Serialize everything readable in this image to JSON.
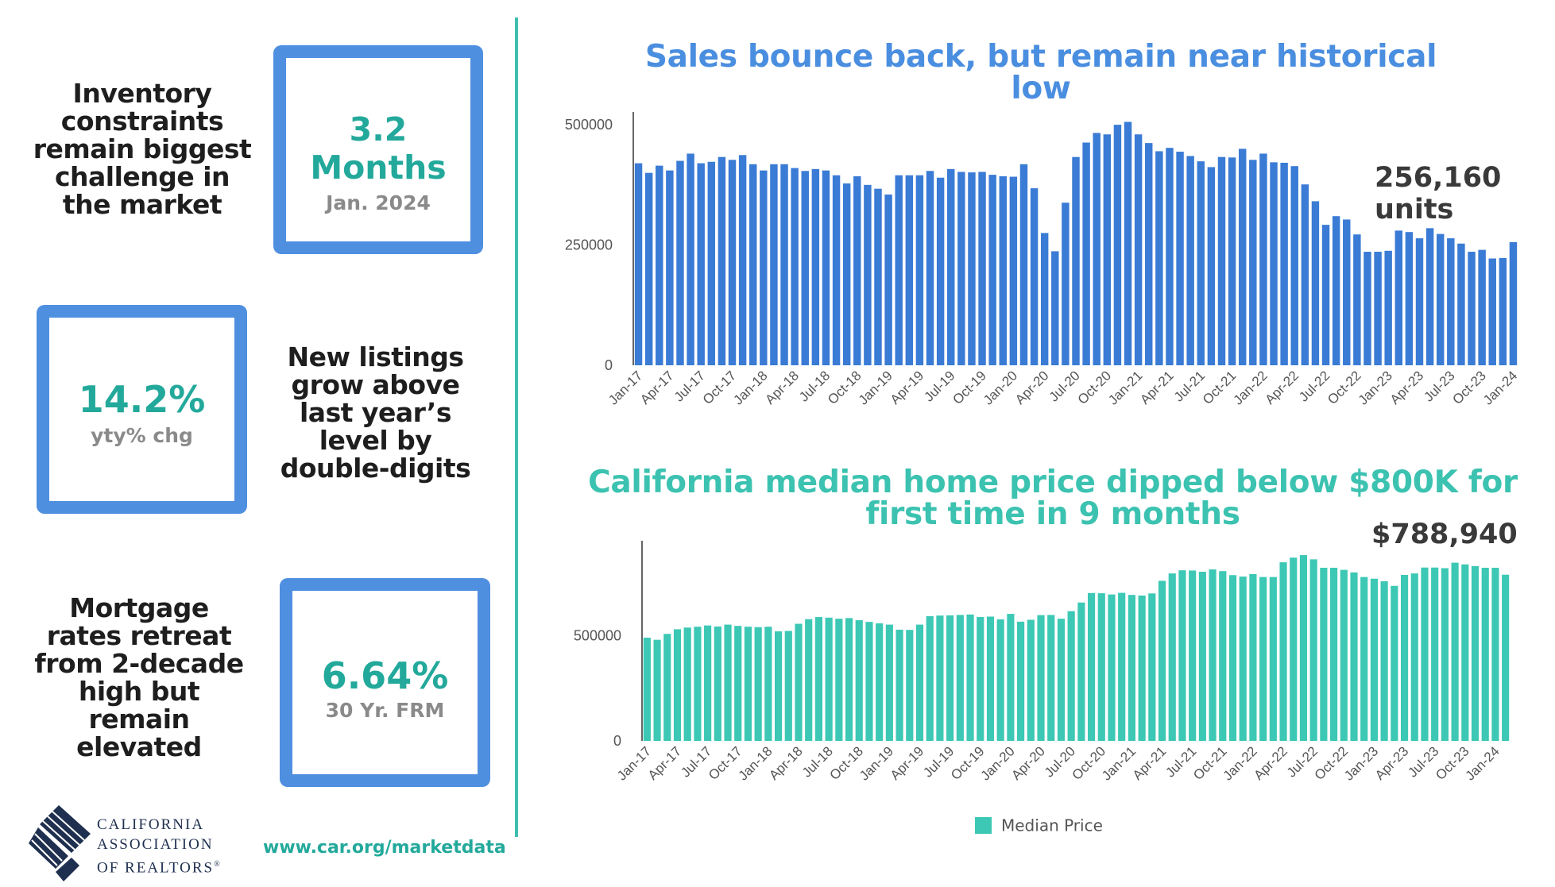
{
  "left_panel": {
    "inventory": {
      "heading": [
        "Inventory",
        "constraints",
        "remain biggest",
        "challenge in",
        "the market"
      ],
      "value": "3.2 Months",
      "sub": "Jan. 2024"
    },
    "listings": {
      "heading": [
        "New listings",
        "grow above",
        "last year’s",
        "level by",
        "double-digits"
      ],
      "value": "14.2%",
      "sub": "yty% chg"
    },
    "mortgage": {
      "heading": [
        "Mortgage",
        "rates retreat",
        "from 2-decade",
        "high but",
        "remain",
        "elevated"
      ],
      "value": "6.64%",
      "sub": "30 Yr. FRM"
    },
    "logo": {
      "lines": [
        "CALIFORNIA",
        "ASSOCIATION",
        "OF REALTORS"
      ],
      "reg": "®"
    },
    "url": "www.car.org/marketdata"
  },
  "colors": {
    "sales_bar": "#3a7bd5",
    "price_bar": "#3cc8b4",
    "box_border": "#4f8fe0",
    "accent_teal": "#23a99b",
    "title_blue": "#4a8ee0",
    "title_teal": "#3cc2b0"
  },
  "chart_data": [
    {
      "type": "bar",
      "title": "Sales bounce back, but remain near historical low",
      "callout": "256,160 units",
      "ylim": [
        0,
        520000
      ],
      "yticks": [
        0,
        250000,
        500000
      ],
      "ytick_labels": [
        "0",
        "250000",
        "500000"
      ],
      "xtick_labels": [
        "Jan-17",
        "Apr-17",
        "Jul-17",
        "Oct-17",
        "Jan-18",
        "Apr-18",
        "Jul-18",
        "Oct-18",
        "Jan-19",
        "Apr-19",
        "Jul-19",
        "Oct-19",
        "Jan-20",
        "Apr-20",
        "Jul-20",
        "Oct-20",
        "Jan-21",
        "Apr-21",
        "Jul-21",
        "Oct-21",
        "Jan-22",
        "Apr-22",
        "Jul-22",
        "Oct-22",
        "Jan-23",
        "Apr-23",
        "Jul-23",
        "Oct-23",
        "Jan-24"
      ],
      "values": [
        420000,
        400000,
        415000,
        405000,
        425000,
        440000,
        420000,
        423000,
        433000,
        427000,
        437000,
        418000,
        405000,
        418000,
        418000,
        410000,
        404000,
        408000,
        405000,
        395000,
        378000,
        393000,
        375000,
        367000,
        355000,
        395000,
        395000,
        395000,
        404000,
        390000,
        408000,
        402000,
        401000,
        402000,
        396000,
        393000,
        392000,
        418000,
        368000,
        275000,
        237000,
        338000,
        433000,
        463000,
        483000,
        480000,
        500000,
        506000,
        480000,
        462000,
        445000,
        452000,
        444000,
        435000,
        424000,
        412000,
        433000,
        432000,
        450000,
        427000,
        440000,
        422000,
        421000,
        414000,
        376000,
        341000,
        292000,
        310000,
        303000,
        272000,
        236000,
        236000,
        238000,
        280000,
        277000,
        264000,
        285000,
        273000,
        264000,
        253000,
        236000,
        240000,
        222000,
        223000,
        256160
      ]
    },
    {
      "type": "bar",
      "title": "California median home price dipped below $800K for first time in 9 months",
      "callout": "$788,940",
      "series_name": "Median Price",
      "ylim": [
        0,
        935000
      ],
      "yticks": [
        0,
        500000
      ],
      "ytick_labels": [
        "0",
        "500000"
      ],
      "xtick_labels": [
        "Jan-17",
        "Apr-17",
        "Jul-17",
        "Oct-17",
        "Jan-18",
        "Apr-18",
        "Jul-18",
        "Oct-18",
        "Jan-19",
        "Apr-19",
        "Jul-19",
        "Oct-19",
        "Jan-20",
        "Apr-20",
        "Jul-20",
        "Oct-20",
        "Jan-21",
        "Apr-21",
        "Jul-21",
        "Oct-21",
        "Jan-22",
        "Apr-22",
        "Jul-22",
        "Oct-22",
        "Jan-23",
        "Apr-23",
        "Jul-23",
        "Oct-23",
        "Jan-24"
      ],
      "values": [
        490000,
        480000,
        508000,
        530000,
        538000,
        542000,
        548000,
        543000,
        552000,
        546000,
        542000,
        540000,
        542000,
        520000,
        522000,
        556000,
        578000,
        588000,
        585000,
        580000,
        583000,
        573000,
        565000,
        558000,
        552000,
        528000,
        527000,
        552000,
        592000,
        595000,
        596000,
        598000,
        600000,
        588000,
        590000,
        577000,
        603000,
        566000,
        575000,
        597000,
        598000,
        580000,
        616000,
        657000,
        702000,
        701000,
        695000,
        703000,
        693000,
        690000,
        700000,
        760000,
        795000,
        810000,
        809000,
        803000,
        814000,
        806000,
        787000,
        780000,
        792000,
        778000,
        778000,
        848000,
        870000,
        882000,
        862000,
        822000,
        822000,
        812000,
        800000,
        778000,
        770000,
        758000,
        736000,
        788000,
        795000,
        823000,
        823000,
        820000,
        846000,
        838000,
        830000,
        822000,
        822000,
        788940
      ]
    }
  ]
}
